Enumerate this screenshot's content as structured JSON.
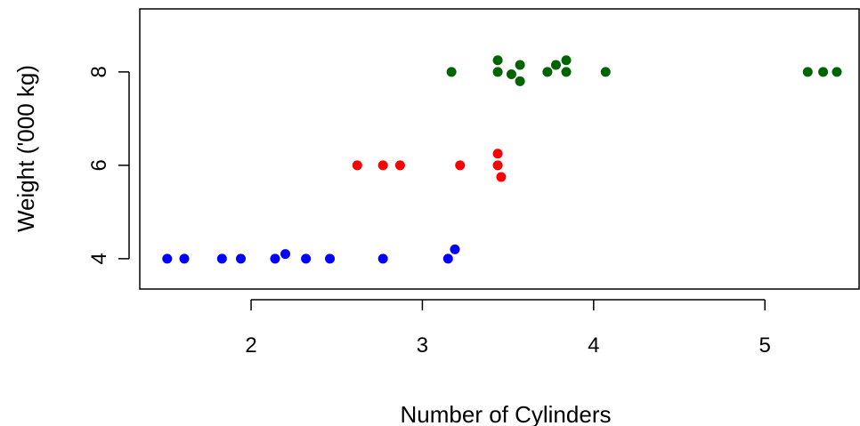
{
  "chart_data": {
    "type": "scatter",
    "title": "",
    "xlabel": "Number of Cylinders",
    "ylabel": "Weight ('000 kg)",
    "xlim": [
      1.35,
      5.55
    ],
    "ylim": [
      3.35,
      9.35
    ],
    "x_ticks": [
      2,
      3,
      4,
      5
    ],
    "x_tick_labels": [
      "2",
      "3",
      "4",
      "5"
    ],
    "y_ticks": [
      4,
      6,
      8
    ],
    "y_tick_labels": [
      "4",
      "6",
      "8"
    ],
    "grid": false,
    "series": [
      {
        "color": "#0000ff",
        "points": [
          [
            1.51,
            4.0
          ],
          [
            1.61,
            4.0
          ],
          [
            1.83,
            4.0
          ],
          [
            1.94,
            4.0
          ],
          [
            2.14,
            4.0
          ],
          [
            2.2,
            4.1
          ],
          [
            2.32,
            4.0
          ],
          [
            2.46,
            4.0
          ],
          [
            2.77,
            4.0
          ],
          [
            3.15,
            4.0
          ],
          [
            3.19,
            4.2
          ]
        ]
      },
      {
        "color": "#ff0000",
        "points": [
          [
            2.62,
            6.0
          ],
          [
            2.77,
            6.0
          ],
          [
            2.87,
            6.0
          ],
          [
            3.22,
            6.0
          ],
          [
            3.44,
            6.25
          ],
          [
            3.44,
            6.0
          ],
          [
            3.46,
            5.75
          ]
        ]
      },
      {
        "color": "#006400",
        "points": [
          [
            3.17,
            8.0
          ],
          [
            3.44,
            8.25
          ],
          [
            3.44,
            8.0
          ],
          [
            3.52,
            7.95
          ],
          [
            3.57,
            8.15
          ],
          [
            3.57,
            7.8
          ],
          [
            3.73,
            8.0
          ],
          [
            3.78,
            8.15
          ],
          [
            3.84,
            8.25
          ],
          [
            3.84,
            8.0
          ],
          [
            4.07,
            8.0
          ],
          [
            5.25,
            8.0
          ],
          [
            5.34,
            8.0
          ],
          [
            5.42,
            8.0
          ]
        ]
      }
    ]
  }
}
